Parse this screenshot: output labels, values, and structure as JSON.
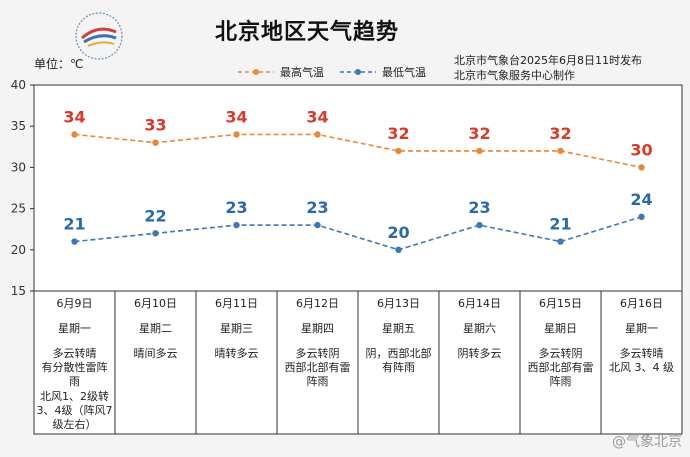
{
  "header": {
    "title": "北京地区天气趋势",
    "unit": "单位：℃",
    "issuer_line1": "北京市气象台2025年6月8日11时发布",
    "issuer_line2": "北京市气象服务中心制作"
  },
  "colors": {
    "high": "#e8893a",
    "low": "#3f78b5",
    "high_label": "#d93a2a",
    "low_label": "#2a6aa8"
  },
  "watermark": "@气象北京",
  "days": [
    {
      "date": "6月9日",
      "weekday": "星期一",
      "weather": [
        "多云转晴",
        "有分散性雷阵",
        "雨"
      ],
      "wind": [
        "北风1、2级转",
        "3、4级（阵风7",
        "级左右）"
      ]
    },
    {
      "date": "6月10日",
      "weekday": "星期二",
      "weather": [
        "晴间多云"
      ],
      "wind": []
    },
    {
      "date": "6月11日",
      "weekday": "星期三",
      "weather": [
        "晴转多云"
      ],
      "wind": []
    },
    {
      "date": "6月12日",
      "weekday": "星期四",
      "weather": [
        "多云转阴",
        "西部北部有雷",
        "阵雨"
      ],
      "wind": []
    },
    {
      "date": "6月13日",
      "weekday": "星期五",
      "weather": [
        "阴，西部北部",
        "有阵雨"
      ],
      "wind": []
    },
    {
      "date": "6月14日",
      "weekday": "星期六",
      "weather": [
        "阴转多云"
      ],
      "wind": []
    },
    {
      "date": "6月15日",
      "weekday": "星期日",
      "weather": [
        "多云转阴",
        "西部北部有雷",
        "阵雨"
      ],
      "wind": []
    },
    {
      "date": "6月16日",
      "weekday": "星期一",
      "weather": [
        "多云转晴",
        "北风 3、4 级"
      ],
      "wind": []
    }
  ],
  "chart_data": {
    "type": "line",
    "categories": [
      "6月9日",
      "6月10日",
      "6月11日",
      "6月12日",
      "6月13日",
      "6月14日",
      "6月15日",
      "6月16日"
    ],
    "series": [
      {
        "name": "最高气温",
        "values": [
          34,
          33,
          34,
          34,
          32,
          32,
          32,
          30
        ]
      },
      {
        "name": "最低气温",
        "values": [
          21,
          22,
          23,
          23,
          20,
          23,
          21,
          24
        ]
      }
    ],
    "ylim": [
      15,
      40
    ],
    "yticks": [
      "15",
      "20",
      "25",
      "30",
      "35",
      "40"
    ],
    "grid": false,
    "legend": "top-center"
  }
}
